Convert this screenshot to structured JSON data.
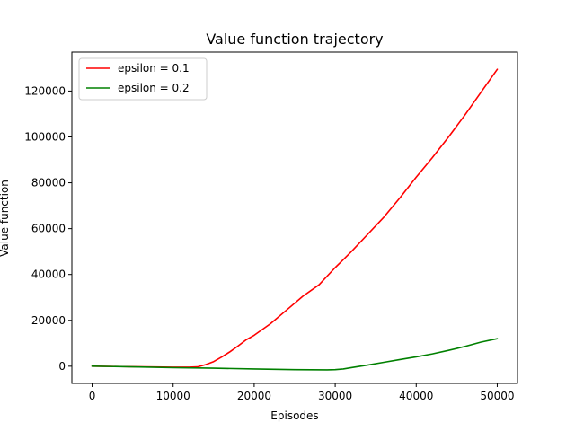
{
  "chart_data": {
    "type": "line",
    "title": "Value function trajectory",
    "xlabel": "Episodes",
    "ylabel": "Value function",
    "xlim": [
      -2500,
      52500
    ],
    "ylim": [
      -7500,
      137000
    ],
    "xticks": [
      0,
      10000,
      20000,
      30000,
      40000,
      50000
    ],
    "yticks": [
      0,
      20000,
      40000,
      60000,
      80000,
      100000,
      120000
    ],
    "grid": false,
    "legend_position": "top-left",
    "series": [
      {
        "name": "epsilon = 0.1",
        "color": "#ff0000",
        "x": [
          0,
          5000,
          10000,
          12000,
          13000,
          14000,
          15000,
          16000,
          17000,
          18000,
          19000,
          20000,
          22000,
          24000,
          26000,
          28000,
          30000,
          32000,
          34000,
          36000,
          38000,
          40000,
          42000,
          44000,
          46000,
          48000,
          50000
        ],
        "y": [
          0,
          -200,
          -400,
          -400,
          -300,
          700,
          2000,
          4000,
          6300,
          8800,
          11500,
          13500,
          18500,
          24500,
          30500,
          35500,
          43000,
          50000,
          57500,
          65000,
          73500,
          82500,
          91000,
          100000,
          109500,
          119500,
          129500
        ]
      },
      {
        "name": "epsilon = 0.2",
        "color": "#008000",
        "x": [
          0,
          5000,
          10000,
          15000,
          20000,
          25000,
          29000,
          30000,
          31000,
          32000,
          34000,
          36000,
          38000,
          40000,
          42000,
          44000,
          46000,
          48000,
          50000
        ],
        "y": [
          0,
          -300,
          -600,
          -900,
          -1200,
          -1500,
          -1600,
          -1500,
          -1200,
          -600,
          500,
          1700,
          2900,
          4100,
          5400,
          6900,
          8600,
          10500,
          12000
        ]
      }
    ]
  }
}
